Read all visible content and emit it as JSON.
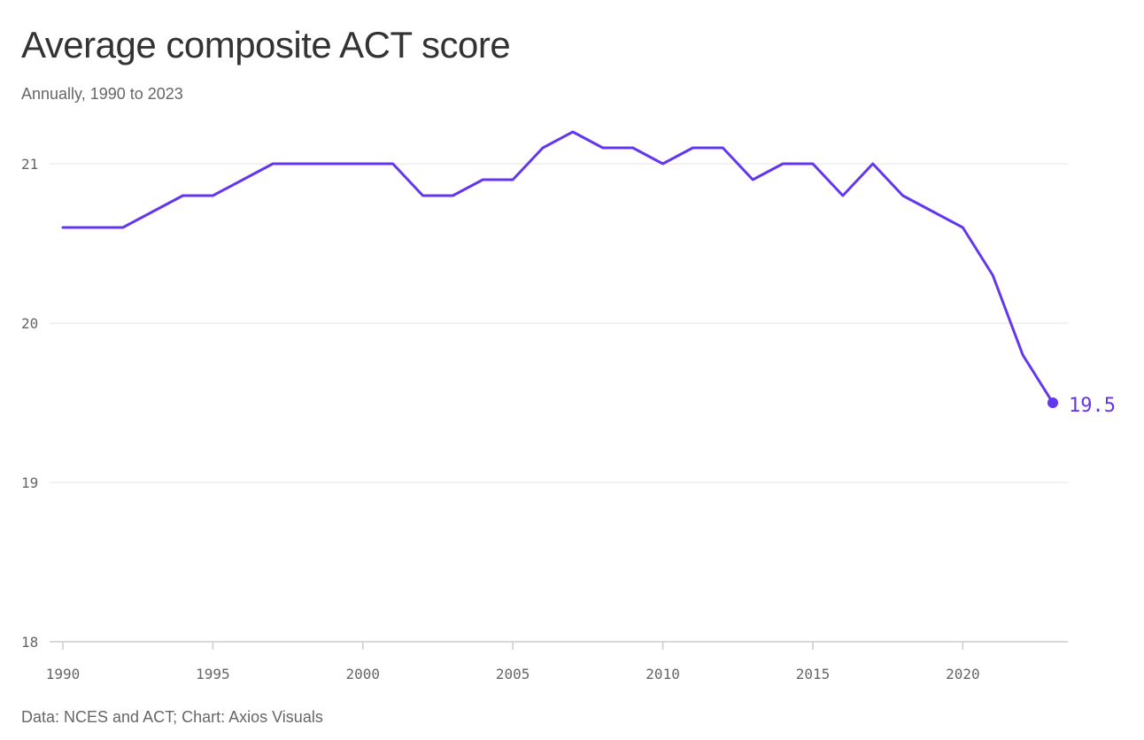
{
  "header": {
    "title": "Average composite ACT score",
    "subtitle": "Annually, 1990 to 2023"
  },
  "footer": {
    "source": "Data: NCES and ACT; Chart: Axios Visuals"
  },
  "colors": {
    "line": "#6336f0",
    "grid": "#e6e6e6",
    "axis": "#cccccc",
    "tick_text": "#666666"
  },
  "chart_data": {
    "type": "line",
    "title": "Average composite ACT score",
    "subtitle": "Annually, 1990 to 2023",
    "xlabel": "",
    "ylabel": "",
    "x": [
      1990,
      1991,
      1992,
      1993,
      1994,
      1995,
      1996,
      1997,
      1998,
      1999,
      2000,
      2001,
      2002,
      2003,
      2004,
      2005,
      2006,
      2007,
      2008,
      2009,
      2010,
      2011,
      2012,
      2013,
      2014,
      2015,
      2016,
      2017,
      2018,
      2019,
      2020,
      2021,
      2022,
      2023
    ],
    "series": [
      {
        "values": [
          20.6,
          20.6,
          20.6,
          20.7,
          20.8,
          20.8,
          20.9,
          21.0,
          21.0,
          21.0,
          21.0,
          21.0,
          20.8,
          20.8,
          20.9,
          20.9,
          21.1,
          21.2,
          21.1,
          21.1,
          21.0,
          21.1,
          21.1,
          20.9,
          21.0,
          21.0,
          20.8,
          21.0,
          20.8,
          20.7,
          20.6,
          20.3,
          19.8,
          19.5
        ]
      }
    ],
    "xticks": [
      1990,
      1995,
      2000,
      2005,
      2010,
      2015,
      2020
    ],
    "xtick_labels": [
      "1990",
      "1995",
      "2000",
      "2005",
      "2010",
      "2015",
      "2020"
    ],
    "yticks": [
      18,
      19,
      20,
      21
    ],
    "ytick_labels": [
      "18",
      "19",
      "20",
      "21"
    ],
    "xlim": [
      1990,
      2023
    ],
    "ylim": [
      18,
      21.25
    ],
    "end_label": "19.5",
    "grid": true,
    "legend": "none"
  }
}
